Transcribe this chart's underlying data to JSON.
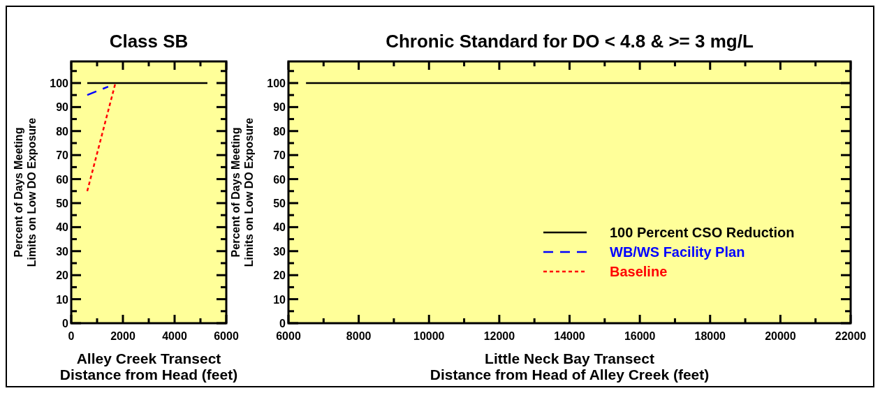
{
  "chart_data": [
    {
      "type": "line",
      "title": "Class SB",
      "xlabel": "Alley Creek Transect\nDistance from Head (feet)",
      "ylabel": "Percent of Days Meeting\nLimits on Low DO Exposure",
      "xlim": [
        0,
        6000
      ],
      "xticks": [
        0,
        {
          "value": 1000,
          "label": null
        },
        2000,
        {
          "value": 3000,
          "label": null
        },
        4000,
        {
          "value": 5000,
          "label": null
        },
        6000
      ],
      "ylim": [
        0,
        109
      ],
      "yticks": [
        0,
        {
          "value": 5,
          "label": null
        },
        10,
        {
          "value": 15,
          "label": null
        },
        20,
        {
          "value": 25,
          "label": null
        },
        30,
        {
          "value": 35,
          "label": null
        },
        40,
        {
          "value": 45,
          "label": null
        },
        50,
        {
          "value": 55,
          "label": null
        },
        60,
        {
          "value": 65,
          "label": null
        },
        70,
        {
          "value": 75,
          "label": null
        },
        80,
        {
          "value": 85,
          "label": null
        },
        90,
        {
          "value": 95,
          "label": null
        },
        100,
        {
          "value": 105,
          "label": null
        }
      ],
      "grid": false,
      "legend": false,
      "marker": "none",
      "series": [
        {
          "color": "#ff0000",
          "line_style": "dotted",
          "x": [
            620,
            1710
          ],
          "values": [
            55,
            100
          ]
        },
        {
          "color": "#0000ff",
          "line_style": "dashed",
          "x": [
            620,
            1430
          ],
          "values": [
            95,
            98.5
          ]
        },
        {
          "color": "#000000",
          "line_style": "solid",
          "x": [
            620,
            5270
          ],
          "values": [
            100,
            100
          ]
        }
      ]
    },
    {
      "type": "line",
      "title": "Chronic Standard for DO < 4.8 & >= 3 mg/L",
      "xlabel": "Little Neck Bay Transect\nDistance from Head of Alley Creek (feet)",
      "ylabel": "Percent of Days Meeting\nLimits on Low DO Exposure",
      "xlim": [
        6000,
        22000
      ],
      "xticks": [
        6000,
        {
          "value": 7000,
          "label": null
        },
        8000,
        {
          "value": 9000,
          "label": null
        },
        10000,
        {
          "value": 11000,
          "label": null
        },
        12000,
        {
          "value": 13000,
          "label": null
        },
        14000,
        {
          "value": 15000,
          "label": null
        },
        16000,
        {
          "value": 17000,
          "label": null
        },
        18000,
        {
          "value": 19000,
          "label": null
        },
        20000,
        {
          "value": 21000,
          "label": null
        },
        22000
      ],
      "ylim": [
        0,
        109
      ],
      "yticks": [
        0,
        {
          "value": 5,
          "label": null
        },
        10,
        {
          "value": 15,
          "label": null
        },
        20,
        {
          "value": 25,
          "label": null
        },
        30,
        {
          "value": 35,
          "label": null
        },
        40,
        {
          "value": 45,
          "label": null
        },
        50,
        {
          "value": 55,
          "label": null
        },
        60,
        {
          "value": 65,
          "label": null
        },
        70,
        {
          "value": 75,
          "label": null
        },
        80,
        {
          "value": 85,
          "label": null
        },
        90,
        {
          "value": 95,
          "label": null
        },
        100,
        {
          "value": 105,
          "label": null
        }
      ],
      "grid": false,
      "legend": "bottom right",
      "marker": "none",
      "series": [
        {
          "name": "Baseline",
          "color": "#ff0000",
          "line_style": "dotted"
        },
        {
          "name": "WB/WS Facility Plan",
          "color": "#0000ff",
          "line_style": "dashed"
        },
        {
          "name": "100 Percent CSO Reduction",
          "color": "#000000",
          "line_style": "solid",
          "x": [
            6500,
            22000
          ],
          "values": [
            100,
            100
          ]
        }
      ]
    }
  ]
}
